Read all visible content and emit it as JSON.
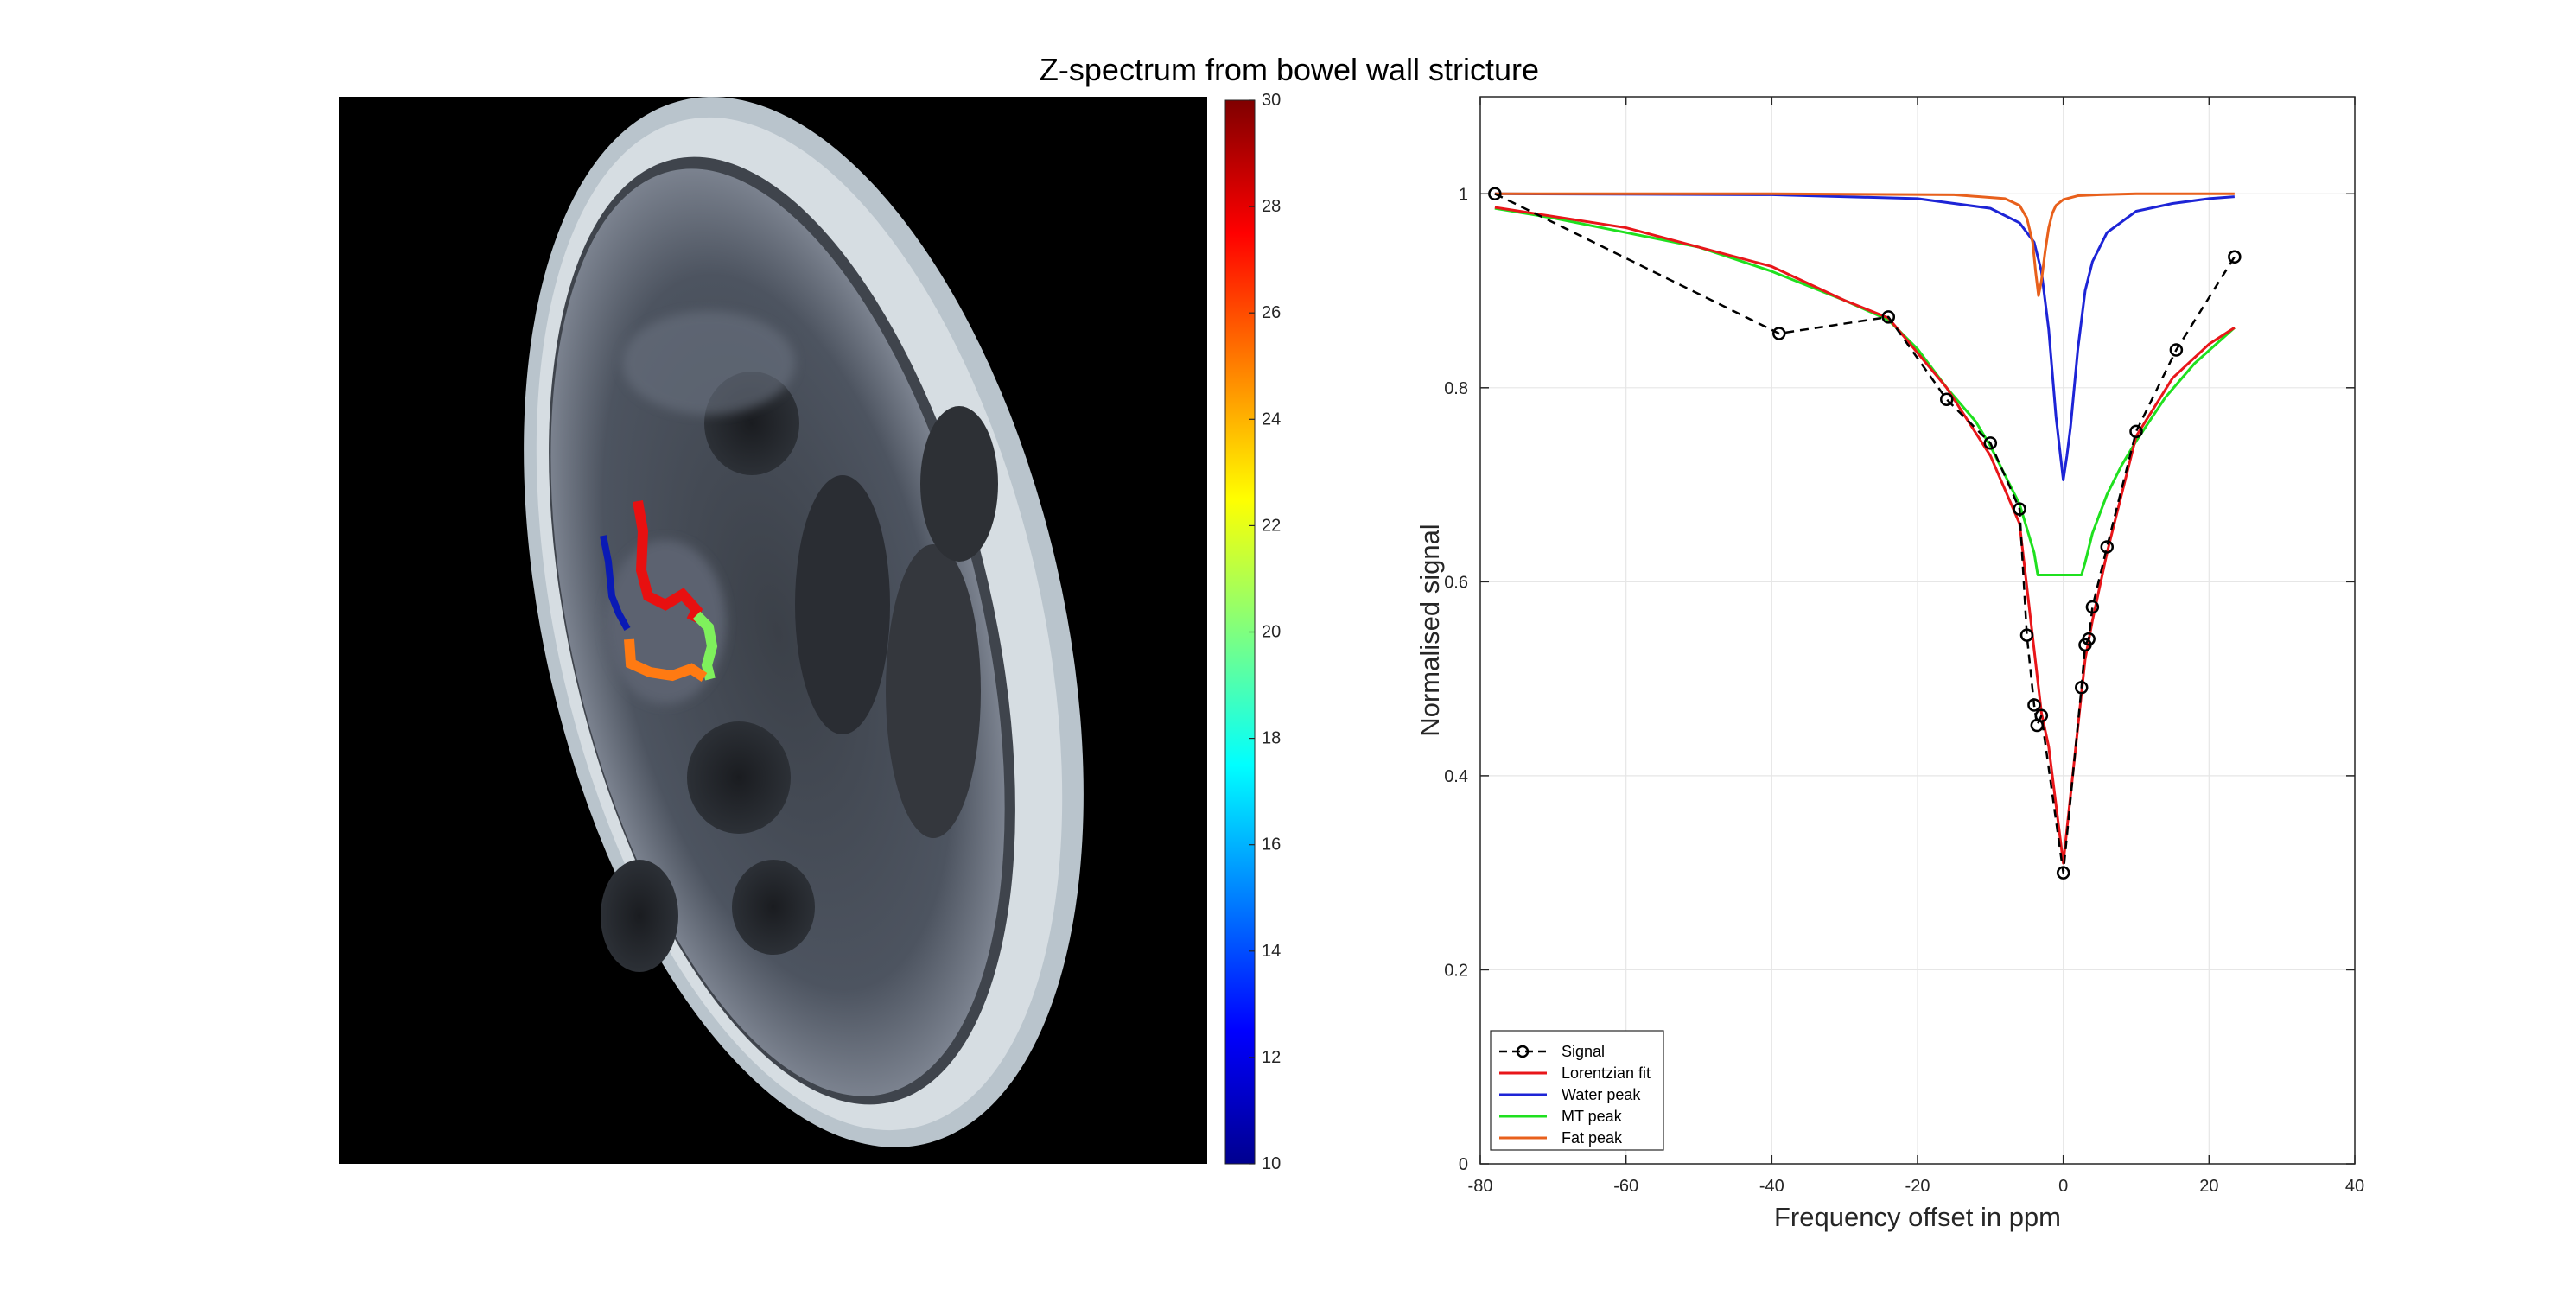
{
  "figure": {
    "title": "Z-spectrum from bowel wall stricture"
  },
  "image_panel": {
    "description_icon": "mri-axial-slice",
    "roi_colors": [
      "#0a1ab5",
      "#e81010",
      "#7ff05c",
      "#ff7a12"
    ]
  },
  "colorbar": {
    "min": 10,
    "max": 30,
    "ticks": [
      10,
      12,
      14,
      16,
      18,
      20,
      22,
      24,
      26,
      28,
      30
    ],
    "colormap": "jet"
  },
  "chart_data": {
    "type": "line",
    "title": "",
    "xlabel": "Frequency offset in ppm",
    "ylabel": "Normalised signal",
    "xlim": [
      -80,
      40
    ],
    "ylim": [
      0,
      1.1
    ],
    "xticks": [
      -80,
      -60,
      -40,
      -20,
      0,
      20,
      40
    ],
    "yticks": [
      0,
      0.2,
      0.4,
      0.6,
      0.8,
      1
    ],
    "grid": true,
    "legend_position": "bottom-left",
    "series": [
      {
        "name": "Signal",
        "style": "dashed-markers",
        "color": "#000000",
        "x": [
          -78,
          -39,
          -24,
          -16,
          -10,
          -6,
          -5,
          -4,
          -3.6,
          -3,
          0,
          2.5,
          3,
          3.5,
          4,
          6,
          10,
          15.5,
          23.5
        ],
        "y": [
          1.0,
          0.856,
          0.873,
          0.788,
          0.743,
          0.675,
          0.545,
          0.473,
          0.452,
          0.462,
          0.3,
          0.491,
          0.535,
          0.541,
          0.574,
          0.636,
          0.755,
          0.839,
          0.935
        ]
      },
      {
        "name": "Lorentzian fit",
        "style": "line",
        "color": "#e8161a",
        "x": [
          -78,
          -60,
          -40,
          -30,
          -24,
          -16,
          -10,
          -6,
          -4,
          -3,
          -2,
          -1,
          0,
          1,
          2,
          3,
          4,
          6,
          10,
          15,
          20,
          23.5
        ],
        "y": [
          0.986,
          0.965,
          0.925,
          0.89,
          0.872,
          0.8,
          0.73,
          0.66,
          0.53,
          0.465,
          0.43,
          0.37,
          0.31,
          0.38,
          0.45,
          0.52,
          0.56,
          0.63,
          0.75,
          0.81,
          0.845,
          0.862
        ]
      },
      {
        "name": "Water peak",
        "style": "line",
        "color": "#1d24d6",
        "x": [
          -78,
          -40,
          -20,
          -10,
          -6,
          -4,
          -3,
          -2,
          -1,
          0,
          0.5,
          1,
          2,
          3,
          4,
          6,
          10,
          15,
          20,
          23.5
        ],
        "y": [
          1.0,
          0.999,
          0.995,
          0.985,
          0.97,
          0.95,
          0.92,
          0.86,
          0.77,
          0.705,
          0.73,
          0.76,
          0.84,
          0.9,
          0.93,
          0.96,
          0.982,
          0.99,
          0.995,
          0.997
        ]
      },
      {
        "name": "MT peak",
        "style": "line",
        "color": "#1fe01f",
        "x": [
          -78,
          -70,
          -60,
          -50,
          -40,
          -30,
          -24,
          -20,
          -16,
          -12,
          -10,
          -8,
          -6,
          -5,
          -4,
          -3.5,
          2.5,
          3,
          4,
          6,
          8,
          10,
          14,
          18,
          23.5
        ],
        "y": [
          0.985,
          0.975,
          0.96,
          0.945,
          0.92,
          0.89,
          0.87,
          0.84,
          0.8,
          0.765,
          0.74,
          0.71,
          0.68,
          0.655,
          0.63,
          0.607,
          0.607,
          0.62,
          0.65,
          0.69,
          0.72,
          0.745,
          0.79,
          0.825,
          0.862
        ]
      },
      {
        "name": "Fat peak",
        "style": "line",
        "color": "#e8601c",
        "x": [
          -78,
          -40,
          -15,
          -8,
          -6,
          -5,
          -4.2,
          -3.8,
          -3.4,
          -3,
          -2.5,
          -2,
          -1.5,
          -1,
          0,
          2,
          5,
          10,
          23.5
        ],
        "y": [
          1.0,
          1.0,
          0.999,
          0.995,
          0.988,
          0.975,
          0.95,
          0.92,
          0.895,
          0.91,
          0.94,
          0.965,
          0.98,
          0.988,
          0.994,
          0.998,
          0.999,
          1.0,
          1.0
        ]
      }
    ]
  }
}
